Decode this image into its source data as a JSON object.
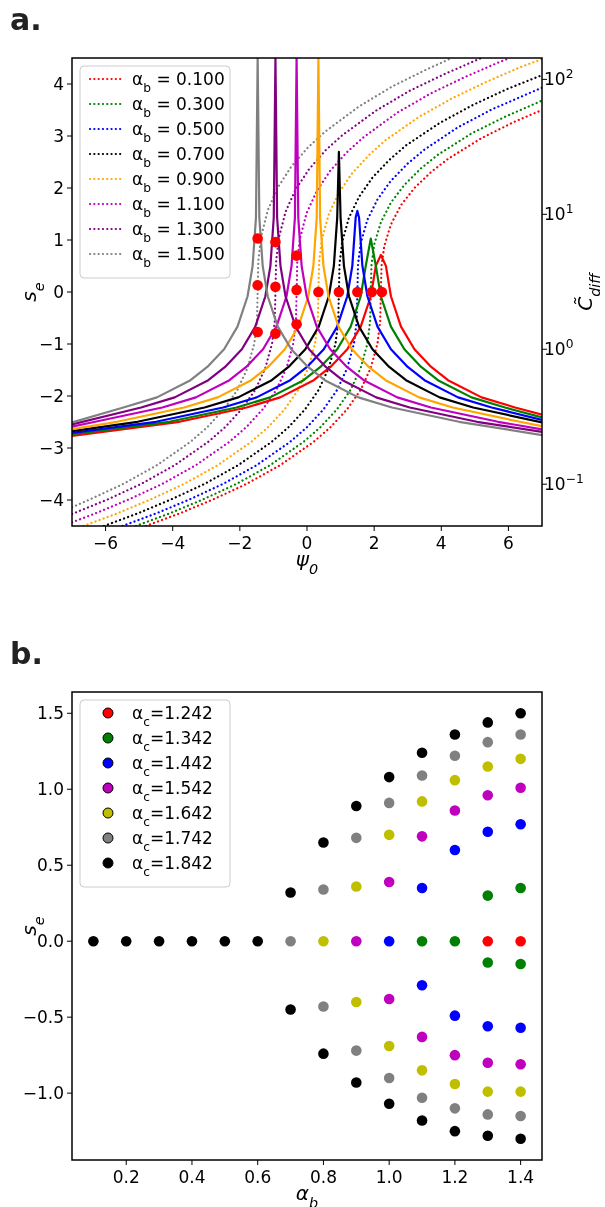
{
  "chart_data": [
    {
      "type": "line",
      "title": "a.",
      "xlabel": "ψ$_{0}$",
      "ylabel": "s$_{e}$",
      "y2label": "C̃$_{diff}$",
      "legend": "top left",
      "log": "y2",
      "xlim": [
        -7,
        7
      ],
      "ylim": [
        -4.5,
        4.5
      ],
      "y2lim": [
        0.049,
        144
      ],
      "xticks": [
        {
          "value": -6,
          "label": "−6"
        },
        {
          "value": -4,
          "label": "−4"
        },
        {
          "value": -2,
          "label": "−2"
        },
        0,
        2,
        4,
        6
      ],
      "yticks": [
        {
          "value": -4,
          "label": "−4"
        },
        {
          "value": -3,
          "label": "−3"
        },
        {
          "value": -2,
          "label": "−2"
        },
        {
          "value": -1,
          "label": "−1"
        },
        0,
        1,
        2,
        3,
        4
      ],
      "y2ticks": [
        {
          "value": 0.1,
          "label": "10$^{−1}$"
        },
        {
          "value": 1,
          "label": "10$^{0}$"
        },
        {
          "value": 10,
          "label": "10$^{1}$"
        },
        {
          "value": 100,
          "label": "10$^{2}$"
        }
      ],
      "series": [
        {
          "name": "α$_{b}$ = 0.100",
          "color": "#ff0000",
          "line_style": "dotted",
          "x": [
            -4.8,
            -3.8,
            -2.8,
            -1.8,
            -0.8,
            0.2,
            0.7,
            1.2,
            1.6,
            1.9,
            2.1,
            2.18,
            2.2,
            2.22,
            2.3,
            2.5,
            2.8,
            3.2,
            3.7,
            4.2,
            5.2,
            6.2,
            7
          ],
          "values": [
            -4.5,
            -4.26,
            -3.99,
            -3.69,
            -3.33,
            -2.88,
            -2.6,
            -2.25,
            -1.88,
            -1.46,
            -0.99,
            -0.56,
            0,
            0.5,
            0.88,
            1.3,
            1.67,
            2.0,
            2.31,
            2.56,
            2.96,
            3.28,
            3.5
          ]
        },
        {
          "name": "α$_{b}$ = 0.300",
          "color": "#008000",
          "line_style": "dotted",
          "x": [
            -5.1,
            -4.1,
            -3.1,
            -2.1,
            -1.1,
            -0.1,
            0.4,
            0.9,
            1.3,
            1.6,
            1.8,
            1.88,
            1.9,
            1.92,
            2.0,
            2.2,
            2.5,
            2.9,
            3.4,
            3.9,
            4.9,
            5.9,
            7
          ],
          "values": [
            -4.5,
            -4.26,
            -3.99,
            -3.69,
            -3.33,
            -2.88,
            -2.6,
            -2.25,
            -1.88,
            -1.46,
            -0.99,
            -0.56,
            0,
            0.51,
            0.91,
            1.34,
            1.72,
            2.06,
            2.38,
            2.64,
            3.05,
            3.37,
            3.68
          ]
        },
        {
          "name": "α$_{b}$ = 0.500",
          "color": "#0000ff",
          "line_style": "dotted",
          "x": [
            -5.5,
            -4.5,
            -3.5,
            -2.5,
            -1.5,
            -0.5,
            0,
            0.5,
            0.9,
            1.2,
            1.4,
            1.48,
            1.5,
            1.52,
            1.6,
            1.8,
            2.1,
            2.5,
            3.0,
            3.5,
            4.5,
            5.5,
            6.5,
            7
          ],
          "values": [
            -4.5,
            -4.26,
            -3.99,
            -3.69,
            -3.33,
            -2.88,
            -2.6,
            -2.25,
            -1.88,
            -1.46,
            -0.99,
            -0.56,
            0,
            0.53,
            0.94,
            1.39,
            1.78,
            2.14,
            2.47,
            2.74,
            3.17,
            3.51,
            3.79,
            3.93
          ]
        },
        {
          "name": "α$_{b}$ = 0.700",
          "color": "#000000",
          "line_style": "dotted",
          "x": [
            -6.05,
            -5.05,
            -4.05,
            -3.05,
            -2.05,
            -1.05,
            -0.55,
            -0.05,
            0.35,
            0.65,
            0.85,
            0.93,
            0.95,
            0.97,
            1.05,
            1.25,
            1.55,
            1.95,
            2.45,
            2.95,
            3.95,
            4.95,
            5.95,
            7
          ],
          "values": [
            -4.5,
            -4.26,
            -3.99,
            -3.69,
            -3.33,
            -2.88,
            -2.6,
            -2.25,
            -1.88,
            -1.46,
            -0.99,
            -0.56,
            0,
            0.55,
            0.97,
            1.43,
            1.83,
            2.2,
            2.54,
            2.82,
            3.25,
            3.6,
            3.9,
            4.17
          ]
        },
        {
          "name": "α$_{b}$ = 0.900",
          "color": "#ffa500",
          "line_style": "dotted",
          "x": [
            -6.66,
            -5.66,
            -4.66,
            -3.66,
            -2.66,
            -1.66,
            -1.16,
            -0.66,
            -0.26,
            0.04,
            0.24,
            0.32,
            0.34,
            0.36,
            0.44,
            0.64,
            0.94,
            1.34,
            1.84,
            2.34,
            3.34,
            4.34,
            5.34,
            6.34,
            7
          ],
          "values": [
            -4.5,
            -4.26,
            -3.99,
            -3.69,
            -3.33,
            -2.88,
            -2.6,
            -2.25,
            -1.88,
            -1.46,
            -0.99,
            -0.56,
            0,
            0.57,
            1.0,
            1.48,
            1.9,
            2.28,
            2.63,
            2.92,
            3.37,
            3.73,
            4.04,
            4.32,
            4.48
          ]
        },
        {
          "name": "α$_{b}$ = 1.100",
          "color": "#bf00bf",
          "line_style": "dotted",
          "x": [
            -7,
            -6.31,
            -5.31,
            -4.31,
            -3.31,
            -2.31,
            -1.81,
            -1.31,
            -0.91,
            -0.61,
            -0.41,
            -0.33,
            -0.31,
            -0.29,
            -0.21,
            -0.01,
            0.29,
            0.69,
            1.19,
            1.69,
            2.69,
            3.69,
            4.69,
            5.69,
            6.04
          ],
          "values": [
            -4.43,
            -4.26,
            -3.99,
            -3.69,
            -3.33,
            -2.88,
            -2.6,
            -2.25,
            -1.88,
            -1.46,
            -0.99,
            -0.56,
            0,
            0.58,
            1.03,
            1.52,
            1.94,
            2.33,
            2.69,
            2.98,
            3.45,
            3.82,
            4.13,
            4.41,
            4.5
          ]
        },
        {
          "name": "α$_{b}$ = 1.300",
          "color": "#800080",
          "line_style": "dotted",
          "x": [
            -7,
            -5.94,
            -4.94,
            -3.94,
            -2.94,
            -2.44,
            -1.94,
            -1.54,
            -1.24,
            -1.04,
            -0.96,
            -0.94,
            -0.92,
            -0.84,
            -0.64,
            -0.34,
            0.06,
            0.56,
            1.06,
            2.06,
            3.06,
            4.06,
            5.19
          ],
          "values": [
            -4.27,
            -3.99,
            -3.69,
            -3.33,
            -2.88,
            -2.6,
            -2.25,
            -1.88,
            -1.46,
            -0.99,
            -0.56,
            0,
            0.59,
            1.04,
            1.54,
            1.97,
            2.36,
            2.73,
            3.02,
            3.49,
            3.87,
            4.18,
            4.5
          ]
        },
        {
          "name": "α$_{b}$ = 1.500",
          "color": "#808080",
          "line_style": "dotted",
          "x": [
            -7,
            -6.47,
            -5.47,
            -4.47,
            -3.47,
            -2.97,
            -2.47,
            -2.07,
            -1.77,
            -1.57,
            -1.49,
            -1.47,
            -1.45,
            -1.37,
            -1.17,
            -0.87,
            -0.47,
            0.03,
            0.53,
            1.53,
            2.53,
            3.53,
            4.31
          ],
          "values": [
            -4.14,
            -3.99,
            -3.69,
            -3.33,
            -2.88,
            -2.6,
            -2.25,
            -1.88,
            -1.46,
            -0.99,
            -0.56,
            0,
            0.6,
            1.06,
            1.57,
            2.01,
            2.41,
            2.78,
            3.08,
            3.56,
            3.95,
            4.27,
            4.5
          ]
        },
        {
          "color": "#ff0000",
          "axis": "y2",
          "line_style": "solid",
          "x": [
            -7,
            -3.8,
            -1.8,
            -0.8,
            0.2,
            0.7,
            1.2,
            1.6,
            1.9,
            2.05,
            2.2,
            2.35,
            2.5,
            2.8,
            3.2,
            3.7,
            4.2,
            5.2,
            6.2,
            7
          ],
          "values": [
            0.228,
            0.29,
            0.37,
            0.44,
            0.59,
            0.74,
            1.0,
            1.47,
            2.47,
            4.15,
            5.0,
            4.15,
            2.47,
            1.47,
            1.0,
            0.74,
            0.59,
            0.44,
            0.37,
            0.327
          ]
        },
        {
          "color": "#008000",
          "axis": "y2",
          "line_style": "solid",
          "x": [
            -7,
            -4.1,
            -2.1,
            -1.1,
            -0.1,
            0.4,
            0.9,
            1.3,
            1.6,
            1.75,
            1.9,
            2.05,
            2.2,
            2.5,
            2.9,
            3.4,
            3.9,
            4.9,
            5.9,
            7
          ],
          "values": [
            0.235,
            0.29,
            0.37,
            0.44,
            0.59,
            0.74,
            1.0,
            1.47,
            2.47,
            4.15,
            6.6,
            4.15,
            2.47,
            1.47,
            1.0,
            0.74,
            0.59,
            0.44,
            0.37,
            0.313
          ]
        },
        {
          "color": "#0000ff",
          "axis": "y2",
          "line_style": "solid",
          "x": [
            -7,
            -4.5,
            -2.5,
            -1.5,
            -0.5,
            0,
            0.5,
            0.9,
            1.2,
            1.35,
            1.45,
            1.5,
            1.55,
            1.65,
            1.8,
            2.1,
            2.5,
            3.0,
            3.5,
            4.5,
            5.5,
            7
          ],
          "values": [
            0.24,
            0.29,
            0.37,
            0.44,
            0.59,
            0.74,
            1.0,
            1.47,
            2.47,
            4.15,
            9.46,
            10.6,
            9.46,
            4.15,
            2.47,
            1.47,
            1.0,
            0.74,
            0.59,
            0.44,
            0.37,
            0.3
          ]
        },
        {
          "color": "#000000",
          "axis": "y2",
          "line_style": "solid",
          "x": [
            -7,
            -5.05,
            -3.05,
            -2.05,
            -1.05,
            -0.55,
            -0.05,
            0.35,
            0.65,
            0.8,
            0.9,
            0.95,
            1.0,
            1.1,
            1.25,
            1.55,
            1.95,
            2.45,
            2.95,
            3.95,
            4.95,
            7
          ],
          "values": [
            0.247,
            0.29,
            0.37,
            0.44,
            0.59,
            0.74,
            1.0,
            1.47,
            2.47,
            4.15,
            9.46,
            29,
            9.46,
            4.15,
            2.47,
            1.47,
            1.0,
            0.74,
            0.59,
            0.44,
            0.37,
            0.287
          ]
        },
        {
          "color": "#ffa500",
          "axis": "y2",
          "line_style": "solid",
          "x": [
            -7,
            -5.66,
            -3.66,
            -2.66,
            -1.66,
            -1.16,
            -0.66,
            -0.26,
            0.04,
            0.19,
            0.29,
            0.34,
            0.39,
            0.49,
            0.64,
            0.94,
            1.34,
            1.84,
            2.34,
            3.34,
            4.34,
            6.34,
            7
          ],
          "values": [
            0.256,
            0.29,
            0.37,
            0.44,
            0.59,
            0.74,
            1.0,
            1.47,
            2.47,
            4.15,
            9.46,
            144,
            9.46,
            4.15,
            2.47,
            1.47,
            1.0,
            0.74,
            0.59,
            0.44,
            0.37,
            0.29,
            0.269
          ]
        },
        {
          "color": "#bf00bf",
          "axis": "y2",
          "line_style": "solid",
          "x": [
            -7,
            -6.31,
            -4.31,
            -3.31,
            -2.31,
            -1.81,
            -1.31,
            -0.91,
            -0.61,
            -0.46,
            -0.36,
            -0.31,
            -0.26,
            -0.16,
            -0.01,
            0.29,
            0.69,
            1.19,
            1.69,
            2.69,
            3.69,
            5.69,
            7
          ],
          "values": [
            0.267,
            0.29,
            0.37,
            0.44,
            0.59,
            0.74,
            1.0,
            1.47,
            2.47,
            4.15,
            9.46,
            144,
            9.46,
            4.15,
            2.47,
            1.47,
            1.0,
            0.74,
            0.59,
            0.44,
            0.37,
            0.29,
            0.255
          ]
        },
        {
          "color": "#800080",
          "axis": "y2",
          "line_style": "solid",
          "x": [
            -7,
            -4.94,
            -3.94,
            -2.94,
            -2.44,
            -1.94,
            -1.54,
            -1.24,
            -1.09,
            -0.99,
            -0.94,
            -0.89,
            -0.79,
            -0.64,
            -0.34,
            0.06,
            0.56,
            1.06,
            2.06,
            3.06,
            5.06,
            7
          ],
          "values": [
            0.277,
            0.37,
            0.44,
            0.59,
            0.74,
            1.0,
            1.47,
            2.47,
            4.15,
            9.46,
            144,
            9.46,
            4.15,
            2.47,
            1.47,
            1.0,
            0.74,
            0.59,
            0.44,
            0.37,
            0.29,
            0.244
          ]
        },
        {
          "color": "#808080",
          "axis": "y2",
          "line_style": "solid",
          "x": [
            -7,
            -5.47,
            -4.47,
            -3.47,
            -2.97,
            -2.47,
            -2.07,
            -1.77,
            -1.62,
            -1.52,
            -1.47,
            -1.42,
            -1.32,
            -1.17,
            -0.87,
            -0.47,
            0.03,
            0.53,
            1.53,
            2.53,
            4.53,
            7
          ],
          "values": [
            0.287,
            0.37,
            0.44,
            0.59,
            0.74,
            1.0,
            1.47,
            2.47,
            4.15,
            9.46,
            144,
            9.46,
            4.15,
            2.47,
            1.47,
            1.0,
            0.74,
            0.59,
            0.44,
            0.37,
            0.29,
            0.231
          ]
        },
        {
          "type": "scatter",
          "color": "#ff0000",
          "marker": "circle",
          "x": [
            -1.47,
            -1.47,
            -1.47,
            -0.94,
            -0.94,
            -0.94,
            -0.31,
            -0.31,
            -0.31,
            0.34,
            0.95,
            1.5,
            1.93,
            2.23
          ],
          "values": [
            1.03,
            0.13,
            -0.77,
            0.96,
            0.1,
            -0.8,
            0.7,
            0.04,
            -0.62,
            0,
            0,
            0,
            0,
            0
          ]
        }
      ]
    },
    {
      "type": "scatter",
      "title": "b.",
      "xlabel": "α$_{b}$",
      "ylabel": "s$_{e}$",
      "legend": "top left",
      "marker": "circle",
      "xlim": [
        0.035,
        1.465
      ],
      "ylim": [
        -1.44,
        1.64
      ],
      "xticks": [
        0.2,
        0.4,
        0.6,
        0.8,
        {
          "value": 1,
          "label": "1.0"
        },
        1.2,
        1.4
      ],
      "yticks": [
        {
          "value": -1,
          "label": "−1.0"
        },
        {
          "value": -0.5,
          "label": "−0.5"
        },
        {
          "value": 0,
          "label": "0.0"
        },
        0.5,
        {
          "value": 1,
          "label": "1.0"
        },
        1.5
      ],
      "series": [
        {
          "name": "α$_{c}$=1.242",
          "color": "#ff0000",
          "x": [
            1.3,
            1.4
          ],
          "values": [
            0,
            0
          ]
        },
        {
          "name": "α$_{c}$=1.342",
          "color": "#008000",
          "x": [
            1.1,
            1.2,
            1.3,
            1.3,
            1.4,
            1.4
          ],
          "values": [
            0,
            0,
            0.3,
            -0.14,
            0.35,
            -0.15
          ]
        },
        {
          "name": "α$_{c}$=1.442",
          "color": "#0000ff",
          "x": [
            1.0,
            1.1,
            1.1,
            1.2,
            1.2,
            1.3,
            1.3,
            1.4,
            1.4
          ],
          "values": [
            0,
            0.35,
            -0.29,
            0.6,
            -0.49,
            0.72,
            -0.56,
            0.77,
            -0.57
          ]
        },
        {
          "name": "α$_{c}$=1.542",
          "color": "#bf00bf",
          "x": [
            0.9,
            1.0,
            1.0,
            1.1,
            1.1,
            1.2,
            1.2,
            1.3,
            1.3,
            1.4,
            1.4
          ],
          "values": [
            0,
            0.39,
            -0.38,
            0.69,
            -0.63,
            0.86,
            -0.75,
            0.96,
            -0.8,
            1.01,
            -0.81
          ]
        },
        {
          "name": "α$_{c}$=1.642",
          "color": "#bfbf00",
          "x": [
            0.8,
            0.9,
            0.9,
            1.0,
            1.0,
            1.1,
            1.1,
            1.2,
            1.2,
            1.3,
            1.3,
            1.4,
            1.4
          ],
          "values": [
            0,
            0.36,
            -0.4,
            0.7,
            -0.69,
            0.92,
            -0.85,
            1.06,
            -0.94,
            1.15,
            -0.99,
            1.2,
            -0.99
          ]
        },
        {
          "name": "α$_{c}$=1.742",
          "color": "#808080",
          "x": [
            0.7,
            0.8,
            0.8,
            0.9,
            0.9,
            1.0,
            1.0,
            1.1,
            1.1,
            1.2,
            1.2,
            1.3,
            1.3,
            1.4,
            1.4
          ],
          "values": [
            0,
            0.34,
            -0.43,
            0.68,
            -0.72,
            0.91,
            -0.9,
            1.09,
            -1.03,
            1.22,
            -1.1,
            1.31,
            -1.14,
            1.36,
            -1.15
          ]
        },
        {
          "name": "α$_{c}$=1.842",
          "color": "#000000",
          "x": [
            0.1,
            0.2,
            0.3,
            0.4,
            0.5,
            0.6,
            0.7,
            0.7,
            0.8,
            0.8,
            0.9,
            0.9,
            1.0,
            1.0,
            1.1,
            1.1,
            1.2,
            1.2,
            1.3,
            1.3,
            1.4,
            1.4
          ],
          "values": [
            0,
            0,
            0,
            0,
            0,
            0,
            0.32,
            -0.45,
            0.65,
            -0.74,
            0.89,
            -0.93,
            1.08,
            -1.07,
            1.24,
            -1.18,
            1.36,
            -1.25,
            1.44,
            -1.28,
            1.5,
            -1.3
          ]
        }
      ]
    }
  ]
}
